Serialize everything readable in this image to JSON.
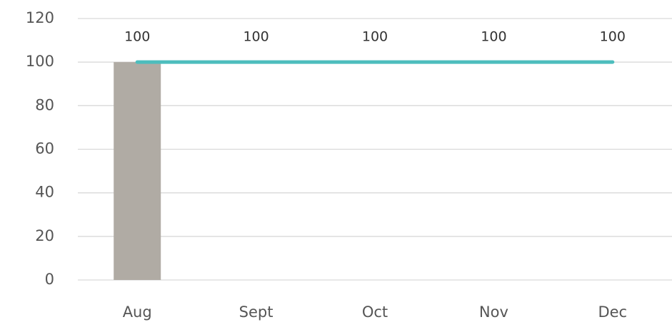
{
  "chart_data": {
    "type": "combo",
    "categories": [
      "Aug",
      "Sept",
      "Oct",
      "Nov",
      "Dec"
    ],
    "series": [
      {
        "type": "bar",
        "color": "#b0aba4",
        "values": [
          100,
          null,
          null,
          null,
          null
        ]
      },
      {
        "type": "line",
        "color": "#4dbdbd",
        "values": [
          100,
          100,
          100,
          100,
          100
        ],
        "data_labels": true
      }
    ],
    "ylim": [
      0,
      120
    ],
    "yticks": [
      0,
      20,
      40,
      60,
      80,
      100,
      120
    ],
    "grid": true
  }
}
